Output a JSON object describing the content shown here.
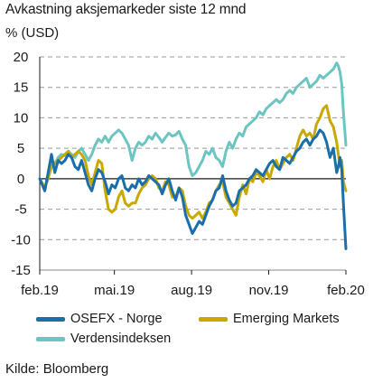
{
  "title": "Avkastning aksjemarkeder siste 12 mnd",
  "unit": "% (USD)",
  "source": "Kilde: Bloomberg",
  "chart_data": {
    "type": "line",
    "ylim": [
      -15,
      20
    ],
    "yticks": [
      20,
      15,
      10,
      5,
      0,
      -5,
      -10,
      -15
    ],
    "xticks": [
      {
        "label": "feb.19",
        "x": 0
      },
      {
        "label": "mai.19",
        "x": 89
      },
      {
        "label": "aug.19",
        "x": 181
      },
      {
        "label": "nov.19",
        "x": 273
      },
      {
        "label": "feb.20",
        "x": 365
      }
    ],
    "xlim": [
      0,
      365
    ],
    "grid": true,
    "legend_position": "bottom",
    "series": [
      {
        "name": "Verdensindeksen",
        "color": "#6cc5c1",
        "x": [
          0,
          6,
          10,
          14,
          18,
          22,
          26,
          30,
          34,
          38,
          42,
          46,
          50,
          54,
          58,
          62,
          66,
          70,
          74,
          78,
          82,
          86,
          90,
          94,
          98,
          102,
          106,
          110,
          114,
          118,
          122,
          126,
          130,
          134,
          138,
          142,
          146,
          150,
          154,
          158,
          162,
          166,
          170,
          174,
          178,
          182,
          186,
          190,
          194,
          198,
          202,
          206,
          210,
          214,
          218,
          222,
          226,
          230,
          234,
          238,
          242,
          246,
          250,
          254,
          258,
          262,
          266,
          270,
          274,
          278,
          282,
          286,
          290,
          294,
          298,
          302,
          306,
          310,
          314,
          318,
          322,
          326,
          330,
          334,
          338,
          342,
          346,
          350,
          354,
          356,
          358,
          360,
          362,
          365
        ],
        "values": [
          0,
          -1.5,
          0.5,
          3,
          2.5,
          3.5,
          4,
          3.8,
          4.5,
          4,
          3.5,
          4.5,
          5,
          4,
          3,
          4,
          5.5,
          6.5,
          6,
          7,
          6,
          7,
          7.5,
          8,
          7.5,
          6.5,
          5.5,
          3,
          5,
          6,
          5.5,
          6,
          7,
          6.5,
          7.5,
          6.8,
          6,
          6.8,
          7.5,
          7,
          7.2,
          7.8,
          6.5,
          5.5,
          2,
          0.5,
          1,
          2,
          3,
          4.5,
          4,
          5,
          3.5,
          3,
          2,
          4.5,
          6,
          5,
          6.5,
          7.5,
          7,
          8.5,
          9,
          9.5,
          10,
          11,
          10.5,
          11.5,
          12,
          12.5,
          13,
          12.5,
          13,
          14,
          14.5,
          14,
          15,
          15.5,
          16,
          16.5,
          15,
          15.5,
          16,
          17,
          16.5,
          17,
          17.5,
          18,
          19,
          18.5,
          17.5,
          15.5,
          11,
          5.5
        ]
      },
      {
        "name": "Emerging Markets",
        "color": "#c9a800",
        "x": [
          0,
          6,
          10,
          14,
          18,
          22,
          26,
          30,
          34,
          38,
          42,
          46,
          50,
          54,
          58,
          62,
          66,
          70,
          74,
          78,
          82,
          86,
          90,
          94,
          98,
          102,
          106,
          110,
          114,
          118,
          122,
          126,
          130,
          134,
          138,
          142,
          146,
          150,
          154,
          158,
          162,
          166,
          170,
          174,
          178,
          182,
          186,
          190,
          194,
          198,
          202,
          206,
          210,
          214,
          218,
          222,
          226,
          230,
          234,
          238,
          242,
          246,
          250,
          254,
          258,
          262,
          266,
          270,
          274,
          278,
          282,
          286,
          290,
          294,
          298,
          302,
          306,
          310,
          314,
          318,
          322,
          326,
          330,
          334,
          338,
          342,
          346,
          350,
          354,
          356,
          358,
          360,
          362,
          365
        ],
        "values": [
          0,
          -1.5,
          0,
          2,
          2.5,
          3,
          3.5,
          4,
          4.5,
          3.5,
          4,
          4.5,
          4,
          3,
          0.5,
          -1,
          1,
          3,
          2.5,
          -2,
          -5,
          -5.5,
          -5,
          -3,
          -2,
          -4,
          -4.5,
          -4,
          -4,
          -2.5,
          -1.5,
          -1,
          0,
          0.5,
          0,
          -1.5,
          -2,
          -0.5,
          -1,
          -3,
          -3,
          -1.5,
          -2,
          -4.5,
          -6,
          -6.5,
          -6,
          -5.5,
          -6.5,
          -5.5,
          -4,
          -3.5,
          -2,
          -1,
          -0.5,
          -3,
          -4,
          -5,
          -6,
          -3,
          -1,
          -2.5,
          0,
          -0.5,
          1,
          0.5,
          -0.5,
          1.5,
          0,
          2,
          3,
          1.5,
          2.5,
          3.5,
          4,
          3,
          5,
          7,
          8,
          7,
          7.5,
          6.5,
          9,
          10,
          11.5,
          12,
          9.5,
          8.5,
          6,
          4,
          2,
          3,
          -0.5,
          -2
        ]
      },
      {
        "name": "OSEFX - Norge",
        "color": "#1a6faa",
        "x": [
          0,
          6,
          10,
          14,
          18,
          22,
          26,
          30,
          34,
          38,
          42,
          46,
          50,
          54,
          58,
          62,
          66,
          70,
          74,
          78,
          82,
          86,
          90,
          94,
          98,
          102,
          106,
          110,
          114,
          118,
          122,
          126,
          130,
          134,
          138,
          142,
          146,
          150,
          154,
          158,
          162,
          166,
          170,
          174,
          178,
          182,
          186,
          190,
          194,
          198,
          202,
          206,
          210,
          214,
          218,
          222,
          226,
          230,
          234,
          238,
          242,
          246,
          250,
          254,
          258,
          262,
          266,
          270,
          274,
          278,
          282,
          286,
          290,
          294,
          298,
          302,
          306,
          310,
          314,
          318,
          322,
          326,
          330,
          334,
          338,
          342,
          346,
          350,
          354,
          356,
          358,
          360,
          362,
          365
        ],
        "values": [
          0,
          -2,
          1,
          4,
          1,
          3,
          2.5,
          3,
          4,
          3.5,
          2,
          1.5,
          3,
          1,
          -1,
          -2,
          0,
          1.5,
          1,
          -0.5,
          -2.5,
          -1,
          -1.5,
          0,
          0.5,
          -1.5,
          -2,
          -1,
          -1.5,
          0,
          -1,
          -0.5,
          0.5,
          0,
          -0.5,
          -1,
          -2.5,
          -1,
          0,
          -2,
          -3.5,
          -1.5,
          -3,
          -6,
          -7.5,
          -9,
          -8,
          -7,
          -7.5,
          -6,
          -4.5,
          -3.5,
          -2,
          -1.5,
          0.5,
          -2,
          -3.5,
          -4.5,
          -4,
          -2,
          -1.5,
          -1,
          0,
          0.5,
          1.5,
          1,
          0.5,
          1.5,
          2.5,
          3,
          2,
          1.5,
          3.5,
          3,
          2.5,
          3.5,
          4.5,
          5,
          6,
          6.5,
          5.5,
          6.5,
          7,
          8,
          7.5,
          6,
          3.5,
          5,
          1,
          2,
          3.5,
          1.5,
          -4,
          -11.5
        ]
      }
    ]
  }
}
